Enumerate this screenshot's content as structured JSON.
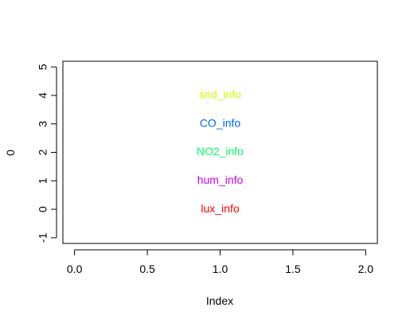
{
  "chart_data": {
    "type": "scatter",
    "title": "",
    "xlabel": "Index",
    "ylabel": "0",
    "xlim": [
      -0.08,
      2.08
    ],
    "ylim": [
      -1.2,
      5.2
    ],
    "xticks": [
      0.0,
      0.5,
      1.0,
      1.5,
      2.0
    ],
    "xtick_labels": [
      "0.0",
      "0.5",
      "1.0",
      "1.5",
      "2.0"
    ],
    "yticks": [
      -1,
      0,
      1,
      2,
      3,
      4,
      5
    ],
    "ytick_labels": [
      "-1",
      "0",
      "1",
      "2",
      "3",
      "4",
      "5"
    ],
    "grid": false,
    "points": [
      {
        "x": 1.0,
        "y": 0,
        "label": "lux_info",
        "color": "#ff0000"
      },
      {
        "x": 1.0,
        "y": 1,
        "label": "hum_info",
        "color": "#cc00ff"
      },
      {
        "x": 1.0,
        "y": 2,
        "label": "NO2_info",
        "color": "#00ff66"
      },
      {
        "x": 1.0,
        "y": 3,
        "label": "CO_info",
        "color": "#0066ff"
      },
      {
        "x": 1.0,
        "y": 4,
        "label": "snd_info",
        "color": "#ccff00"
      }
    ]
  }
}
